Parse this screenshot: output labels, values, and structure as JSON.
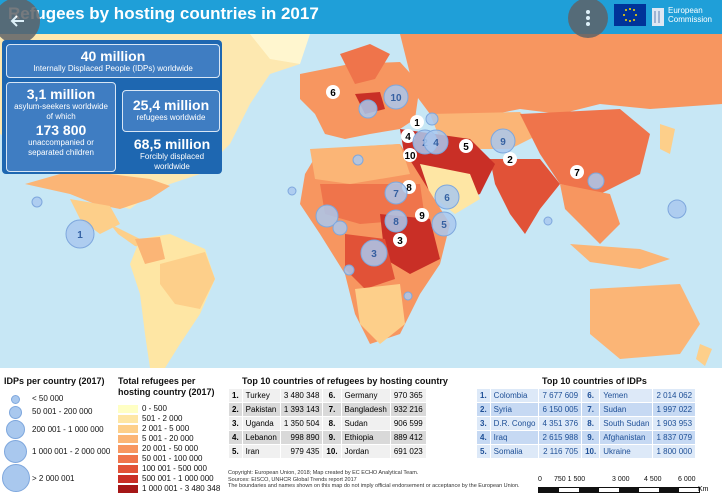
{
  "banner": {
    "title": "Refugees by hosting countries in 2017",
    "ec_text_line1": "European",
    "ec_text_line2": "Commission"
  },
  "info": {
    "idp_total": "40 million",
    "idp_desc": "Internally Displaced People (IDPs) worldwide",
    "asylum_total": "3,1 million",
    "asylum_desc1": "asylum-seekers worldwide",
    "asylum_desc2": "of which",
    "unaccompanied_total": "173 800",
    "unaccompanied_desc1": "unaccompanied or",
    "unaccompanied_desc2": "separated children",
    "refugees_total": "25,4 million",
    "refugees_desc": "refugees worldwide",
    "forcibly_total": "68,5 million",
    "forcibly_desc": "Forcibly displaced worldwide"
  },
  "map_markers": {
    "refugee_ranks": [
      "1",
      "2",
      "3",
      "4",
      "5",
      "6",
      "7",
      "8",
      "9",
      "10"
    ],
    "idp_ranks": [
      "1",
      "2",
      "3",
      "4",
      "5",
      "6",
      "7",
      "8",
      "9",
      "10"
    ]
  },
  "legend": {
    "idp_title": "IDPs per country (2017)",
    "idp_classes": [
      "< 50 000",
      "50 001 - 200 000",
      "200 001 - 1 000 000",
      "1 000 001 - 2 000 000",
      "> 2 000 001"
    ],
    "refugee_title_line1": "Total refugees per",
    "refugee_title_line2": "hosting country (2017)",
    "refugee_classes": [
      "0 - 500",
      "501 - 2 000",
      "2 001 - 5 000",
      "5 001 - 20 000",
      "20 001 - 50 000",
      "50 001 - 100 000",
      "100 001 - 500 000",
      "500 001 - 1 000 000",
      "1 000 001 - 3 480 348"
    ]
  },
  "top_refugees": {
    "title": "Top 10 countries of refugees by hosting country",
    "rows": [
      {
        "rank": "1.",
        "country": "Turkey",
        "value": "3 480 348",
        "rank2": "6.",
        "country2": "Germany",
        "value2": "970 365"
      },
      {
        "rank": "2.",
        "country": "Pakistan",
        "value": "1 393 143",
        "rank2": "7.",
        "country2": "Bangladesh",
        "value2": "932 216"
      },
      {
        "rank": "3.",
        "country": "Uganda",
        "value": "1 350 504",
        "rank2": "8.",
        "country2": "Sudan",
        "value2": "906 599"
      },
      {
        "rank": "4.",
        "country": "Lebanon",
        "value": "998 890",
        "rank2": "9.",
        "country2": "Ethiopia",
        "value2": "889 412"
      },
      {
        "rank": "5.",
        "country": "Iran",
        "value": "979 435",
        "rank2": "10.",
        "country2": "Jordan",
        "value2": "691 023"
      }
    ]
  },
  "top_idps": {
    "title": "Top 10 countries of IDPs",
    "rows": [
      {
        "rank": "1.",
        "country": "Colombia",
        "value": "7 677 609",
        "rank2": "6.",
        "country2": "Yemen",
        "value2": "2 014 062"
      },
      {
        "rank": "2.",
        "country": "Syria",
        "value": "6 150 005",
        "rank2": "7.",
        "country2": "Sudan",
        "value2": "1 997 022"
      },
      {
        "rank": "3.",
        "country": "D.R. Congo",
        "value": "4 351 376",
        "rank2": "8.",
        "country2": "South Sudan",
        "value2": "1 903 953"
      },
      {
        "rank": "4.",
        "country": "Iraq",
        "value": "2 615 988",
        "rank2": "9.",
        "country2": "Afghanistan",
        "value2": "1 837 079"
      },
      {
        "rank": "5.",
        "country": "Somalia",
        "value": "2 116 705",
        "rank2": "10.",
        "country2": "Ukraine",
        "value2": "1 800 000"
      }
    ]
  },
  "credits": {
    "line1": "Copyright: European Union, 2018; Map created by EC ECHO Analytical Team.",
    "line2": "Sources: EISCO, UNHCR Global Trends report 2017",
    "line3": "The boundaries and names shown on this map do not imply official endorsement or acceptance by the European Union."
  },
  "scale_bar": {
    "labels": [
      "0",
      "750 1 500",
      "3 000",
      "4 500",
      "6 000"
    ],
    "unit": "Km"
  },
  "colors": {
    "banner": "#1f9fd8",
    "info_dark": "#1e67b1",
    "info_box": "#3f7dc2",
    "ocean": "#c7e7f5",
    "bubble": "#a9c8ee",
    "choropleth": [
      "#ffffc4",
      "#fee6a4",
      "#fdcf8a",
      "#fbb576",
      "#f79660",
      "#ef744b",
      "#e15237",
      "#c92f26",
      "#a51717"
    ]
  },
  "icons": [
    "arrow-left-icon",
    "more-vertical-icon",
    "eu-flag-icon"
  ]
}
